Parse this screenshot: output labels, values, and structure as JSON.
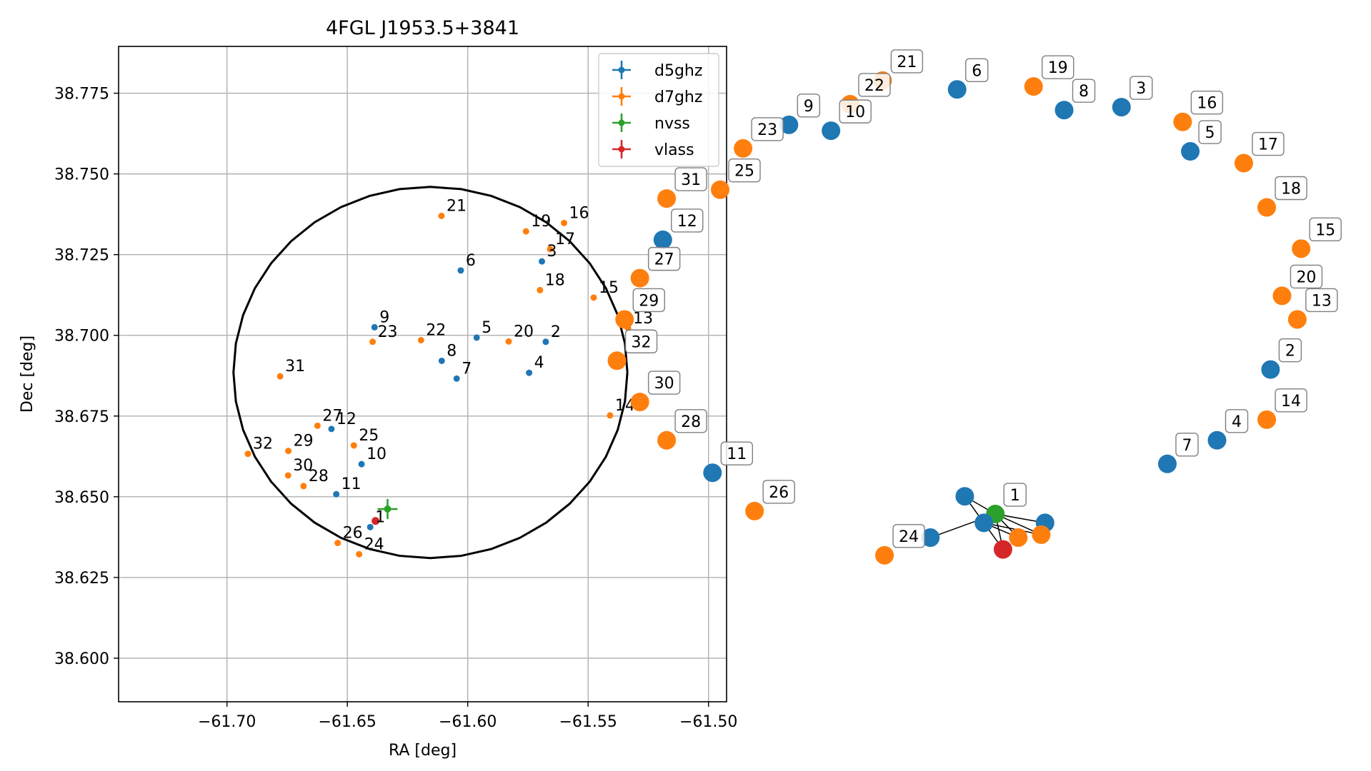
{
  "colors": {
    "d5ghz": "#1f77b4",
    "d7ghz": "#ff7f0e",
    "nvss": "#2ca02c",
    "vlass": "#d62728"
  },
  "chart_data": [
    {
      "type": "scatter",
      "title": "4FGL J1953.5+3841",
      "xlabel": "RA [deg]",
      "ylabel": "Dec [deg]",
      "xlim": [
        -61.745,
        -61.4925
      ],
      "ylim": [
        38.5865,
        38.7895
      ],
      "grid": true,
      "legend_position": "top-right",
      "xticks": [
        -61.7,
        -61.65,
        -61.6,
        -61.55,
        -61.5
      ],
      "xtick_labels": [
        "−61.70",
        "−61.65",
        "−61.60",
        "−61.55",
        "−61.50"
      ],
      "yticks": [
        38.6,
        38.625,
        38.65,
        38.675,
        38.7,
        38.725,
        38.75,
        38.775
      ],
      "ytick_labels": [
        "38.600",
        "38.625",
        "38.650",
        "38.675",
        "38.700",
        "38.725",
        "38.750",
        "38.775"
      ],
      "ellipse": {
        "center": [
          -61.6155,
          38.6885
        ],
        "semi_axis_ra": 0.0818,
        "semi_axis_dec": 0.0575
      },
      "series": [
        {
          "name": "d5ghz",
          "color": "#1f77b4",
          "points": [
            {
              "label": "2",
              "ra": -61.5676,
              "dec": 38.698
            },
            {
              "label": "3",
              "ra": -61.5692,
              "dec": 38.7229
            },
            {
              "label": "4",
              "ra": -61.5745,
              "dec": 38.6884
            },
            {
              "label": "5",
              "ra": -61.5963,
              "dec": 38.6993
            },
            {
              "label": "6",
              "ra": -61.6029,
              "dec": 38.7201
            },
            {
              "label": "7",
              "ra": -61.6046,
              "dec": 38.6866
            },
            {
              "label": "8",
              "ra": -61.6108,
              "dec": 38.6921
            },
            {
              "label": "9",
              "ra": -61.6387,
              "dec": 38.7025
            },
            {
              "label": "10",
              "ra": -61.6441,
              "dec": 38.6601
            },
            {
              "label": "11",
              "ra": -61.6546,
              "dec": 38.6508
            },
            {
              "label": "12",
              "ra": -61.6566,
              "dec": 38.671
            },
            {
              "label": "1",
              "ra": -61.6405,
              "dec": 38.6406
            }
          ]
        },
        {
          "name": "d7ghz",
          "color": "#ff7f0e",
          "points": [
            {
              "label": "13",
              "ra": -61.5334,
              "dec": 38.7022
            },
            {
              "label": "14",
              "ra": -61.5409,
              "dec": 38.6752
            },
            {
              "label": "15",
              "ra": -61.5477,
              "dec": 38.7117
            },
            {
              "label": "16",
              "ra": -61.56,
              "dec": 38.7348
            },
            {
              "label": "17",
              "ra": -61.5658,
              "dec": 38.7267
            },
            {
              "label": "18",
              "ra": -61.57,
              "dec": 38.714
            },
            {
              "label": "19",
              "ra": -61.5758,
              "dec": 38.7322
            },
            {
              "label": "20",
              "ra": -61.583,
              "dec": 38.6981
            },
            {
              "label": "21",
              "ra": -61.6109,
              "dec": 38.737
            },
            {
              "label": "22",
              "ra": -61.6194,
              "dec": 38.6985
            },
            {
              "label": "23",
              "ra": -61.6395,
              "dec": 38.698
            },
            {
              "label": "24",
              "ra": -61.6451,
              "dec": 38.6322
            },
            {
              "label": "25",
              "ra": -61.6473,
              "dec": 38.6659
            },
            {
              "label": "26",
              "ra": -61.654,
              "dec": 38.6357
            },
            {
              "label": "27",
              "ra": -61.6624,
              "dec": 38.672
            },
            {
              "label": "28",
              "ra": -61.6682,
              "dec": 38.6533
            },
            {
              "label": "29",
              "ra": -61.6745,
              "dec": 38.6642
            },
            {
              "label": "30",
              "ra": -61.6746,
              "dec": 38.6566
            },
            {
              "label": "31",
              "ra": -61.6779,
              "dec": 38.6873
            },
            {
              "label": "32",
              "ra": -61.6913,
              "dec": 38.6633
            }
          ]
        },
        {
          "name": "nvss",
          "color": "#2ca02c",
          "points": [
            {
              "label": "",
              "ra": -61.6333,
              "dec": 38.6462
            }
          ]
        },
        {
          "name": "vlass",
          "color": "#d62728",
          "points": [
            {
              "label": "",
              "ra": -61.6383,
              "dec": 38.6425
            }
          ]
        }
      ]
    },
    {
      "type": "network",
      "axes": "off",
      "nodes": [
        {
          "label": "21",
          "group": "d7ghz",
          "pos": [
            -0.575,
            0.93
          ]
        },
        {
          "label": "6",
          "group": "d5ghz",
          "pos": [
            -0.38,
            0.9
          ]
        },
        {
          "label": "19",
          "group": "d7ghz",
          "pos": [
            -0.18,
            0.91
          ]
        },
        {
          "label": "22",
          "group": "d7ghz",
          "pos": [
            -0.66,
            0.85
          ]
        },
        {
          "label": "8",
          "group": "d5ghz",
          "pos": [
            -0.1,
            0.83
          ]
        },
        {
          "label": "3",
          "group": "d5ghz",
          "pos": [
            0.05,
            0.84
          ]
        },
        {
          "label": "9",
          "group": "d5ghz",
          "pos": [
            -0.82,
            0.78
          ]
        },
        {
          "label": "16",
          "group": "d7ghz",
          "pos": [
            0.21,
            0.79
          ]
        },
        {
          "label": "10",
          "group": "d5ghz",
          "pos": [
            -0.71,
            0.76
          ]
        },
        {
          "label": "23",
          "group": "d7ghz",
          "pos": [
            -0.94,
            0.7
          ]
        },
        {
          "label": "5",
          "group": "d5ghz",
          "pos": [
            0.23,
            0.69
          ]
        },
        {
          "label": "17",
          "group": "d7ghz",
          "pos": [
            0.37,
            0.65
          ]
        },
        {
          "label": "25",
          "group": "d7ghz",
          "pos": [
            -1.0,
            0.56
          ]
        },
        {
          "label": "31",
          "group": "d7ghz",
          "pos": [
            -1.14,
            0.53
          ]
        },
        {
          "label": "18",
          "group": "d7ghz",
          "pos": [
            0.43,
            0.5
          ]
        },
        {
          "label": "12",
          "group": "d5ghz",
          "pos": [
            -1.15,
            0.39
          ]
        },
        {
          "label": "15",
          "group": "d7ghz",
          "pos": [
            0.52,
            0.36
          ]
        },
        {
          "label": "27",
          "group": "d7ghz",
          "pos": [
            -1.21,
            0.26
          ]
        },
        {
          "label": "20",
          "group": "d7ghz",
          "pos": [
            0.47,
            0.2
          ]
        },
        {
          "label": "29",
          "group": "d7ghz",
          "pos": [
            -1.25,
            0.12
          ]
        },
        {
          "label": "13",
          "group": "d7ghz",
          "pos": [
            0.51,
            0.12
          ]
        },
        {
          "label": "32",
          "group": "d7ghz",
          "pos": [
            -1.27,
            -0.02
          ]
        },
        {
          "label": "2",
          "group": "d5ghz",
          "pos": [
            0.44,
            -0.05
          ]
        },
        {
          "label": "30",
          "group": "d7ghz",
          "pos": [
            -1.21,
            -0.16
          ]
        },
        {
          "label": "14",
          "group": "d7ghz",
          "pos": [
            0.43,
            -0.22
          ]
        },
        {
          "label": "28",
          "group": "d7ghz",
          "pos": [
            -1.14,
            -0.29
          ]
        },
        {
          "label": "4",
          "group": "d5ghz",
          "pos": [
            0.3,
            -0.29
          ]
        },
        {
          "label": "7",
          "group": "d5ghz",
          "pos": [
            0.17,
            -0.37
          ]
        },
        {
          "label": "11",
          "group": "d5ghz",
          "pos": [
            -1.02,
            -0.4
          ]
        },
        {
          "label": "26",
          "group": "d7ghz",
          "pos": [
            -0.91,
            -0.53
          ]
        },
        {
          "label": "1",
          "group": "nvss",
          "pos": [
            -0.28,
            -0.54
          ]
        },
        {
          "label": "24",
          "group": "d7ghz",
          "pos": [
            -0.57,
            -0.68
          ]
        },
        {
          "label": "",
          "group": "d5ghz",
          "pos": [
            -0.36,
            -0.48
          ]
        },
        {
          "label": "",
          "group": "d5ghz",
          "pos": [
            -0.31,
            -0.57
          ]
        },
        {
          "label": "",
          "group": "d5ghz",
          "pos": [
            -0.15,
            -0.57
          ]
        },
        {
          "label": "",
          "group": "d5ghz",
          "pos": [
            -0.45,
            -0.62
          ]
        },
        {
          "label": "",
          "group": "d7ghz",
          "pos": [
            -0.22,
            -0.62
          ]
        },
        {
          "label": "",
          "group": "d7ghz",
          "pos": [
            -0.16,
            -0.61
          ]
        },
        {
          "label": "",
          "group": "vlass",
          "pos": [
            -0.26,
            -0.66
          ]
        }
      ],
      "edges": [
        [
          30,
          32
        ],
        [
          30,
          33
        ],
        [
          30,
          34
        ],
        [
          30,
          35
        ],
        [
          30,
          36
        ],
        [
          30,
          37
        ],
        [
          30,
          38
        ],
        [
          32,
          38
        ],
        [
          33,
          36
        ],
        [
          33,
          37
        ]
      ]
    }
  ]
}
